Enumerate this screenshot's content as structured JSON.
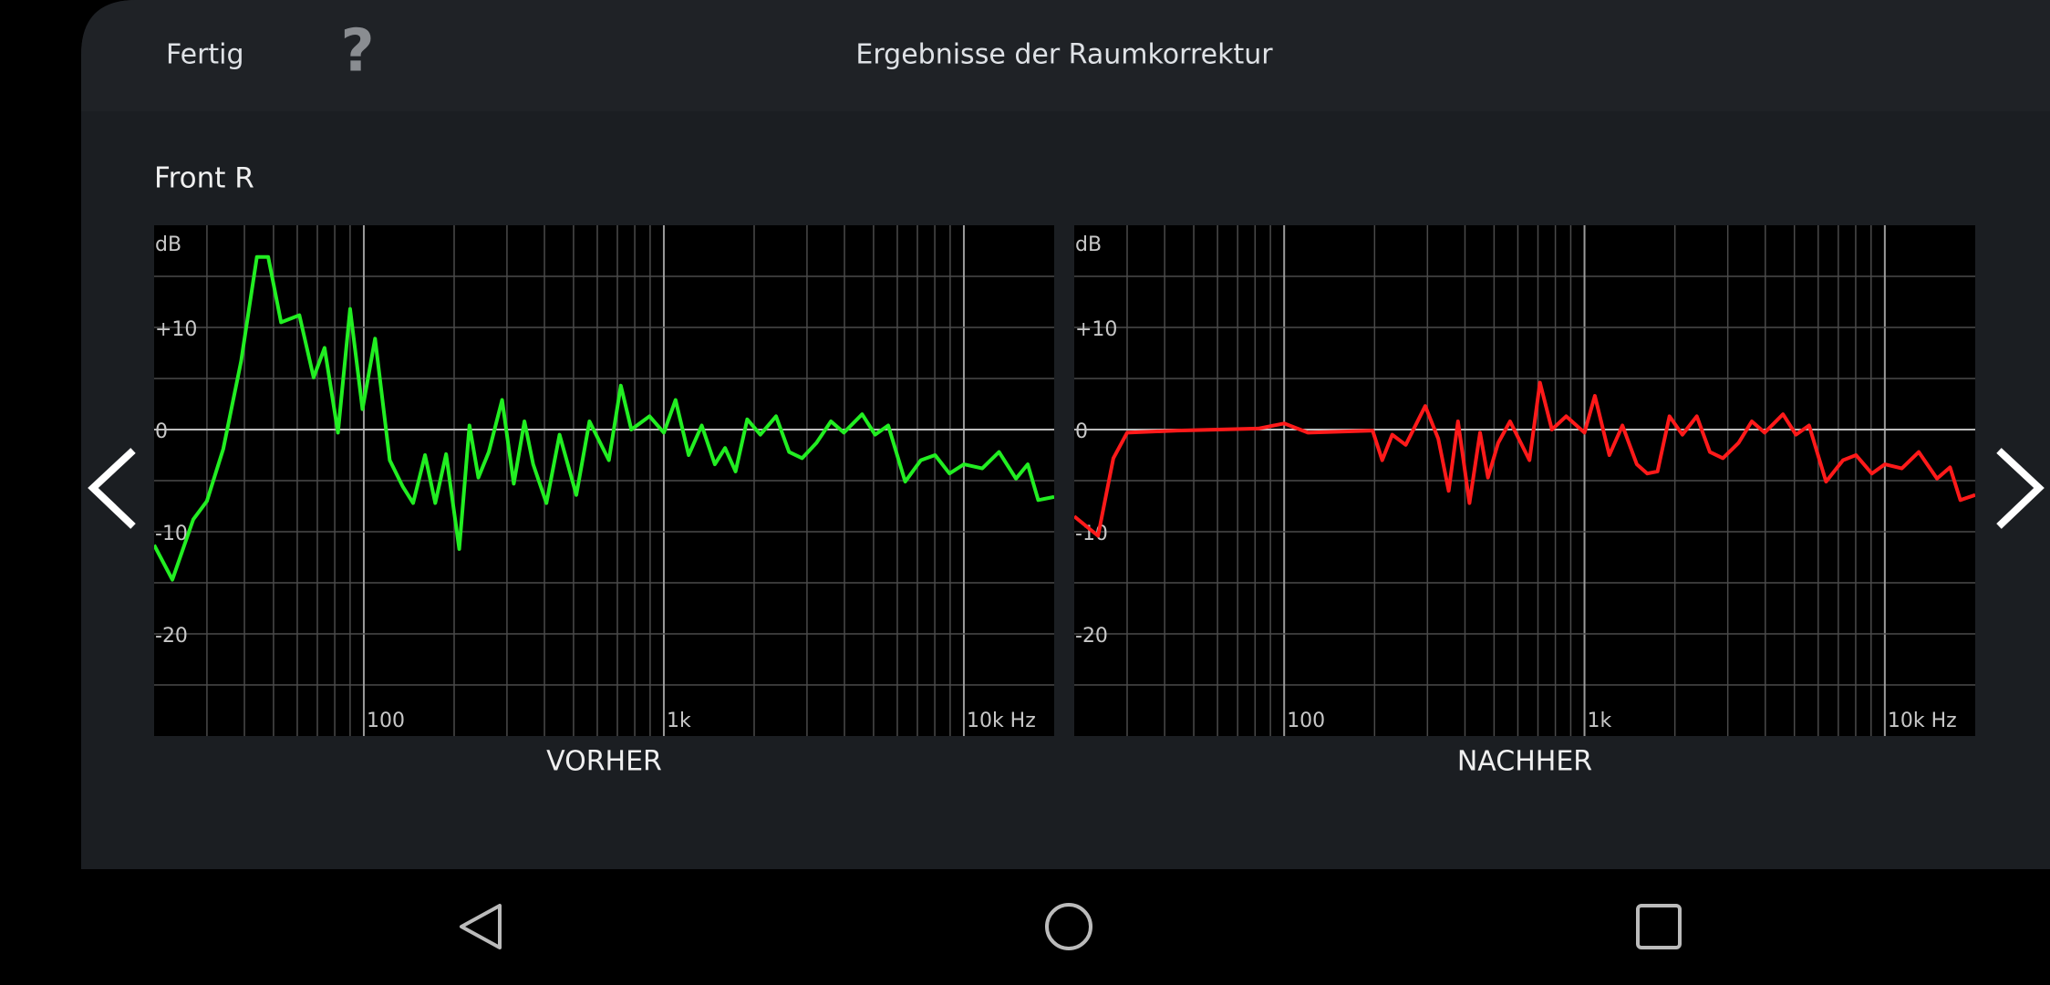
{
  "header": {
    "done": "Fertig",
    "help": "?",
    "title": "Ergebnisse der Raumkorrektur"
  },
  "channel": "Front R",
  "chart_data": [
    {
      "type": "line",
      "title": "VORHER",
      "y_label": "dB",
      "log_x": true,
      "grid": true,
      "xlim": [
        20,
        20000
      ],
      "ylim": [
        -30,
        20
      ],
      "xticks": [
        {
          "value": 100,
          "label": "100"
        },
        {
          "value": 1000,
          "label": "1k"
        },
        {
          "value": 10000,
          "label": "10k Hz"
        }
      ],
      "xgrid": [
        30,
        40,
        50,
        60,
        70,
        80,
        90,
        200,
        300,
        400,
        500,
        600,
        700,
        800,
        900,
        2000,
        3000,
        4000,
        5000,
        6000,
        7000,
        8000,
        9000
      ],
      "yticks": [
        {
          "value": 10,
          "label": "+10"
        },
        0,
        -10,
        -20
      ],
      "ygrid": [
        -25,
        -15,
        -5,
        5,
        15
      ],
      "x": [
        20,
        23,
        27,
        30,
        34,
        39,
        44,
        48,
        53,
        61,
        68,
        74,
        82,
        90,
        99,
        109,
        122,
        135,
        146,
        160,
        173,
        188,
        208,
        225,
        241,
        261,
        289,
        316,
        343,
        367,
        406,
        449,
        511,
        565,
        656,
        719,
        779,
        896,
        1000,
        1094,
        1210,
        1337,
        1479,
        1600,
        1734,
        1897,
        2098,
        2366,
        2614,
        2890,
        3226,
        3606,
        3981,
        4581,
        5058,
        5594,
        6372,
        7189,
        8020,
        8954,
        10000,
        11510,
        13100,
        14920,
        16330,
        17690,
        20000
      ],
      "series": [
        {
          "color": "#22ee22",
          "values": [
            -11.3,
            -14.7,
            -8.8,
            -7,
            -1.9,
            6.7,
            16.9,
            16.9,
            10.5,
            11.2,
            5.1,
            8,
            -0.3,
            11.8,
            2,
            8.9,
            -3,
            -5.6,
            -7.2,
            -2.5,
            -7.2,
            -2.4,
            -11.7,
            0.4,
            -4.7,
            -2.2,
            2.9,
            -5.3,
            0.8,
            -3.4,
            -7.2,
            -0.5,
            -6.4,
            0.8,
            -3,
            4.3,
            0,
            1.3,
            -0.3,
            2.9,
            -2.5,
            0.4,
            -3.4,
            -1.8,
            -4.1,
            1,
            -0.5,
            1.3,
            -2.2,
            -2.8,
            -1.3,
            0.8,
            -0.3,
            1.5,
            -0.5,
            0.4,
            -5.1,
            -3,
            -2.5,
            -4.3,
            -3.4,
            -3.8,
            -2.2,
            -4.8,
            -3.4,
            -6.9,
            -6.6
          ]
        }
      ]
    },
    {
      "type": "line",
      "title": "NACHHER",
      "y_label": "dB",
      "log_x": true,
      "grid": true,
      "xlim": [
        20,
        20000
      ],
      "ylim": [
        -30,
        20
      ],
      "xticks": [
        {
          "value": 100,
          "label": "100"
        },
        {
          "value": 1000,
          "label": "1k"
        },
        {
          "value": 10000,
          "label": "10k Hz"
        }
      ],
      "xgrid": [
        30,
        40,
        50,
        60,
        70,
        80,
        90,
        200,
        300,
        400,
        500,
        600,
        700,
        800,
        900,
        2000,
        3000,
        4000,
        5000,
        6000,
        7000,
        8000,
        9000
      ],
      "yticks": [
        {
          "value": 10,
          "label": "+10"
        },
        0,
        -10,
        -20
      ],
      "ygrid": [
        -25,
        -15,
        -5,
        5,
        15
      ],
      "x": [
        20,
        24,
        27,
        30,
        44,
        82,
        100,
        120,
        197,
        212,
        229,
        254,
        295,
        326,
        353,
        379,
        414,
        449,
        477,
        516,
        565,
        656,
        711,
        779,
        869,
        1000,
        1083,
        1210,
        1337,
        1493,
        1618,
        1750,
        1918,
        2118,
        2366,
        2614,
        2890,
        3258,
        3606,
        3981,
        4581,
        5058,
        5594,
        6372,
        7257,
        8020,
        9050,
        10000,
        11390,
        12970,
        14920,
        16490,
        17850,
        20000
      ],
      "series": [
        {
          "color": "#ff1a1a",
          "values": [
            -8.5,
            -10.4,
            -2.8,
            -0.3,
            -0.1,
            0.1,
            0.6,
            -0.3,
            -0.1,
            -3,
            -0.5,
            -1.5,
            2.3,
            -0.9,
            -6,
            0.8,
            -7.2,
            -0.3,
            -4.7,
            -1.3,
            0.8,
            -3,
            4.6,
            0,
            1.3,
            -0.3,
            3.3,
            -2.5,
            0.4,
            -3.4,
            -4.3,
            -4.1,
            1.3,
            -0.5,
            1.3,
            -2.2,
            -2.8,
            -1.3,
            0.8,
            -0.3,
            1.5,
            -0.5,
            0.4,
            -5.1,
            -3,
            -2.5,
            -4.3,
            -3.4,
            -3.8,
            -2.2,
            -4.8,
            -3.7,
            -6.9,
            -6.4
          ]
        }
      ]
    }
  ]
}
